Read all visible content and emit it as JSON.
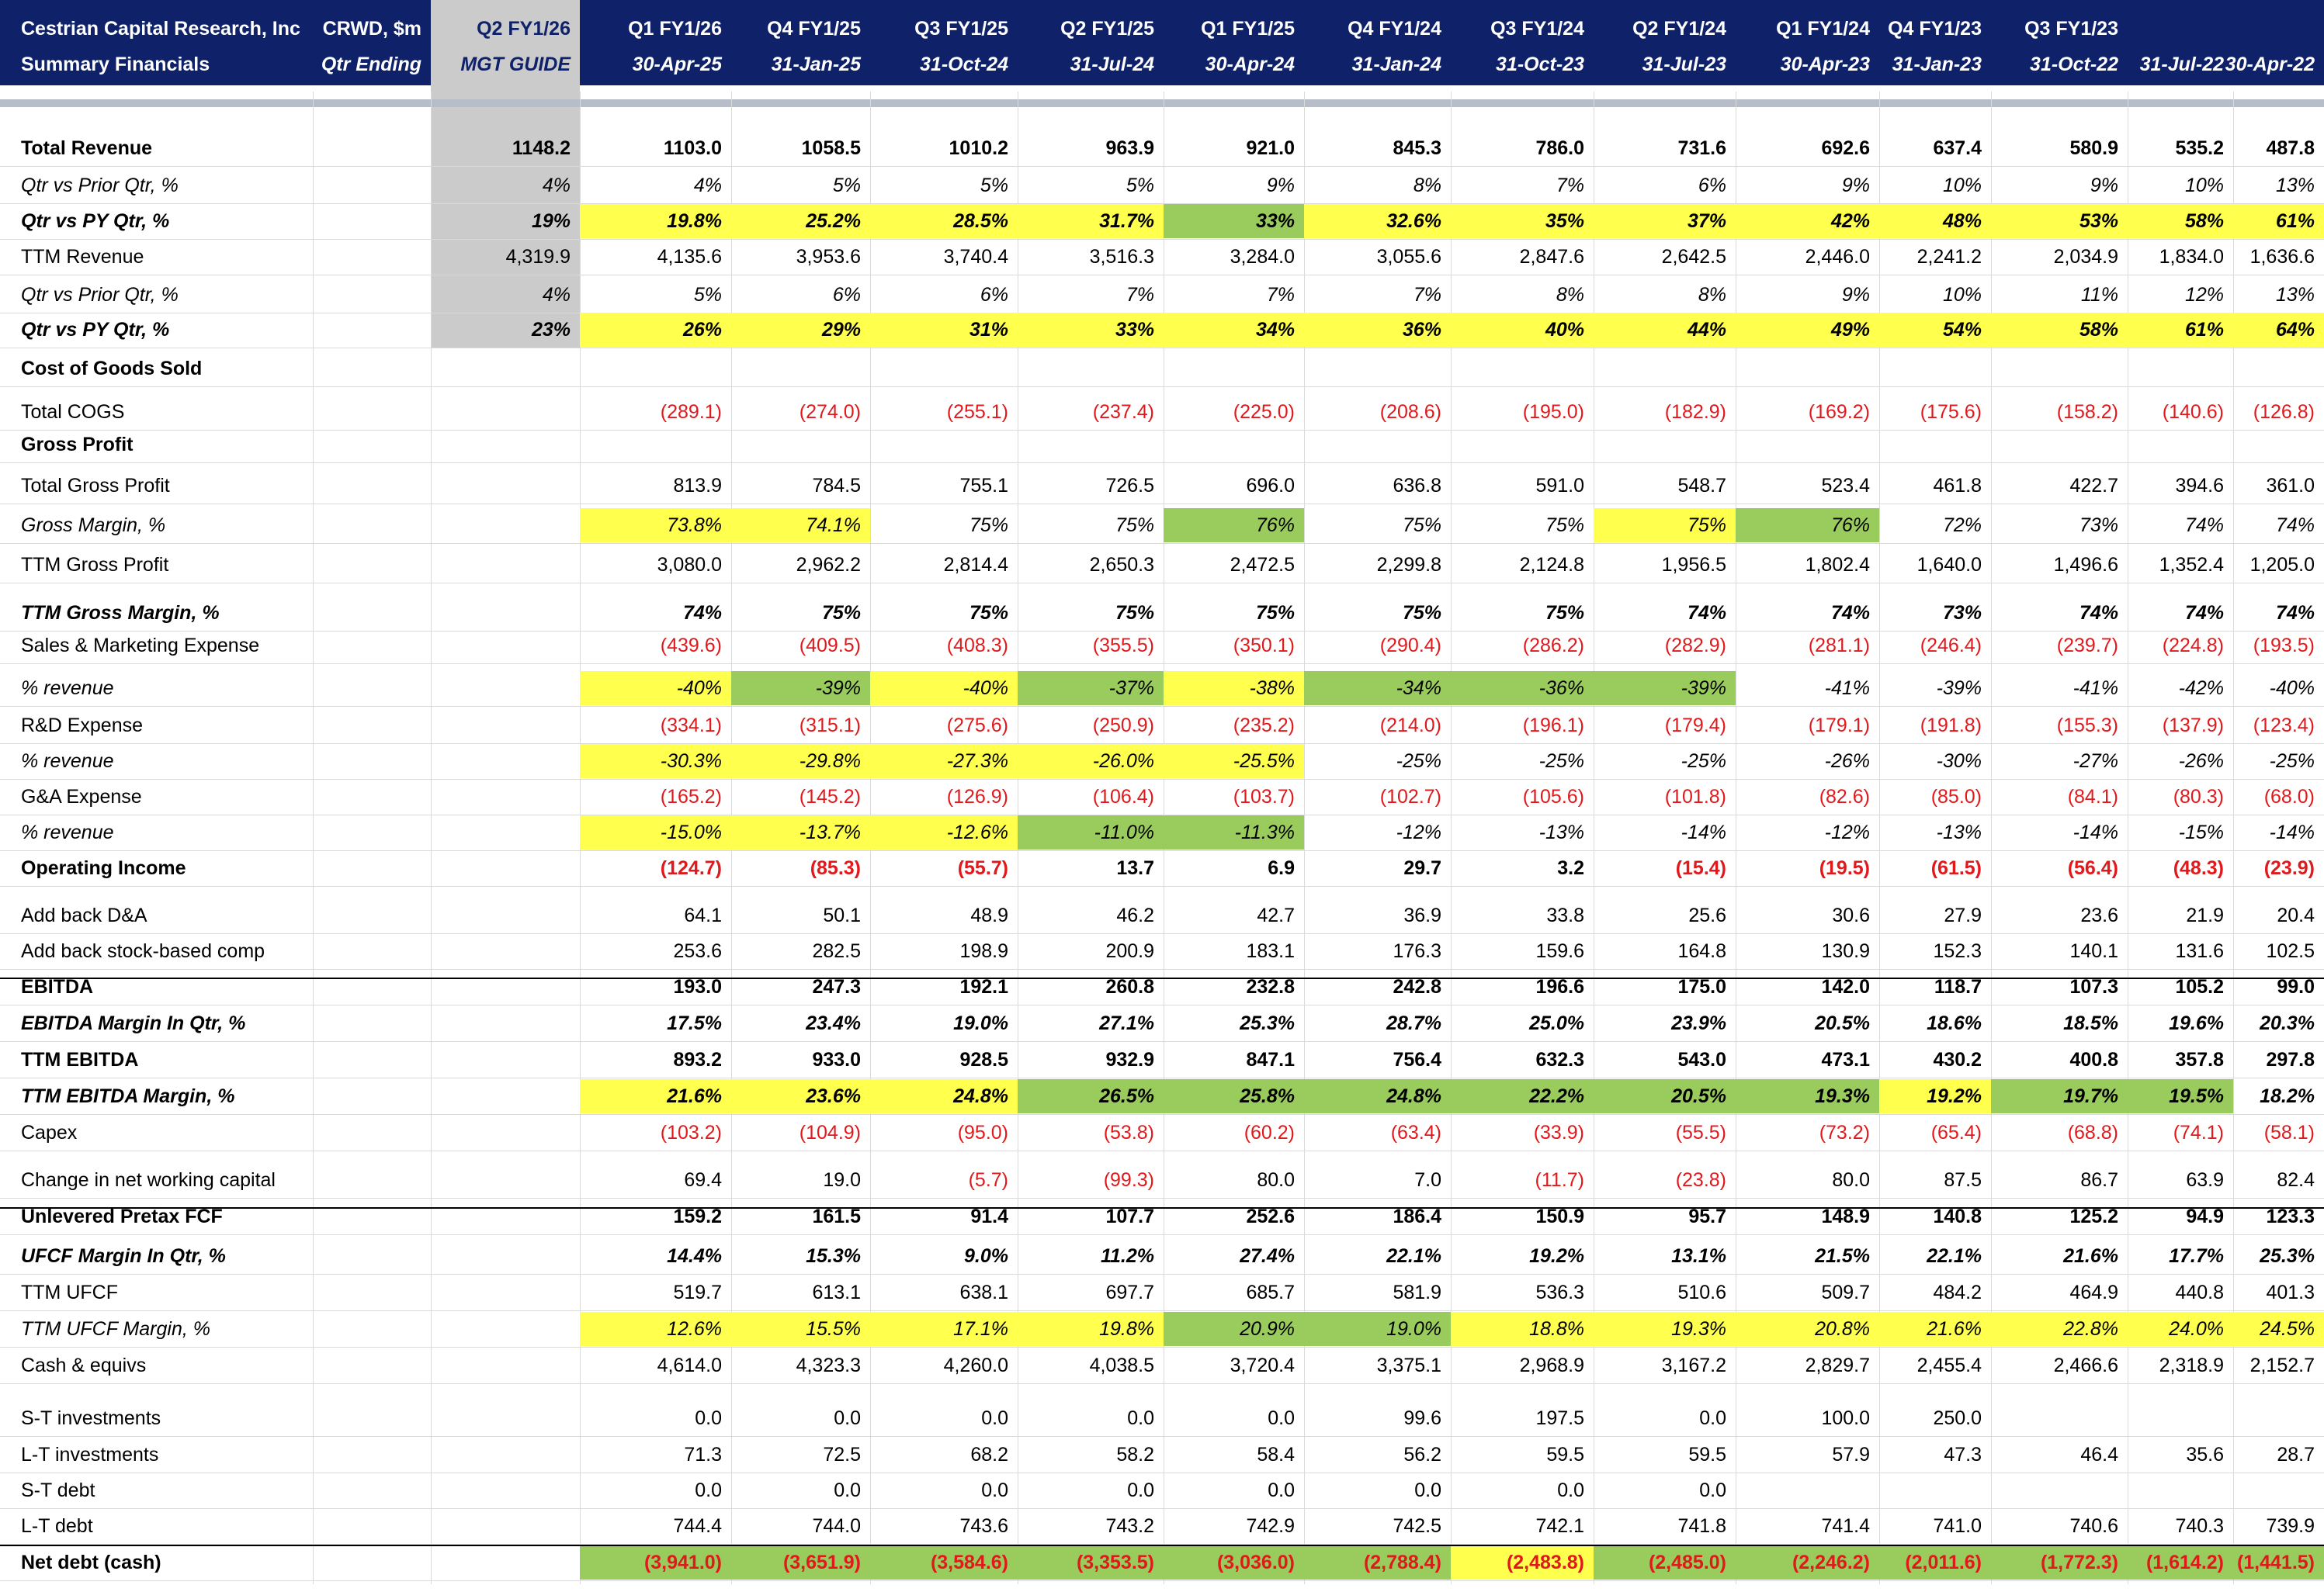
{
  "header": {
    "line1": [
      "Cestrian Capital Research, Inc",
      "CRWD, $m",
      "Q2 FY1/26",
      "Q1 FY1/26",
      "Q4 FY1/25",
      "Q3 FY1/25",
      "Q2 FY1/25",
      "Q1 FY1/25",
      "Q4 FY1/24",
      "Q3 FY1/24",
      "Q2 FY1/24",
      "Q1 FY1/24",
      "Q4 FY1/23",
      "Q3 FY1/23",
      "",
      ""
    ],
    "line2": [
      "Summary Financials",
      "Qtr Ending",
      "MGT GUIDE",
      "30-Apr-25",
      "31-Jan-25",
      "31-Oct-24",
      "31-Jul-24",
      "30-Apr-24",
      "31-Jan-24",
      "31-Oct-23",
      "31-Jul-23",
      "30-Apr-23",
      "31-Jan-23",
      "31-Oct-22",
      "31-Jul-22",
      "30-Apr-22"
    ]
  },
  "colors": {
    "header_bg": "#0f2169",
    "guide_bg": "#cbcbcb",
    "highlight_yellow": "#ffff4d",
    "highlight_green": "#99cc5c",
    "negative_text": "#e0191c"
  },
  "rows": [
    {
      "label": "Total Revenue",
      "style": "b",
      "values": [
        "1148.2",
        "1103.0",
        "1058.5",
        "1010.2",
        "963.9",
        "921.0",
        "845.3",
        "786.0",
        "731.6",
        "692.6",
        "637.4",
        "580.9",
        "535.2",
        "487.8"
      ]
    },
    {
      "label": "Qtr vs Prior Qtr, %",
      "style": "i",
      "values": [
        "4%",
        "4%",
        "5%",
        "5%",
        "5%",
        "9%",
        "8%",
        "7%",
        "6%",
        "9%",
        "10%",
        "9%",
        "10%",
        "13%"
      ]
    },
    {
      "label": "Qtr vs PY Qtr, %",
      "style": "bi",
      "values": [
        "19%",
        "19.8%",
        "25.2%",
        "28.5%",
        "31.7%",
        "33%",
        "32.6%",
        "35%",
        "37%",
        "42%",
        "48%",
        "53%",
        "58%",
        "61%"
      ]
    },
    {
      "label": "TTM Revenue",
      "style": "",
      "values": [
        "4,319.9",
        "4,135.6",
        "3,953.6",
        "3,740.4",
        "3,516.3",
        "3,284.0",
        "3,055.6",
        "2,847.6",
        "2,642.5",
        "2,446.0",
        "2,241.2",
        "2,034.9",
        "1,834.0",
        "1,636.6"
      ]
    },
    {
      "label": "Qtr vs Prior Qtr, %",
      "style": "i",
      "values": [
        "4%",
        "5%",
        "6%",
        "6%",
        "7%",
        "7%",
        "7%",
        "8%",
        "8%",
        "9%",
        "10%",
        "11%",
        "12%",
        "13%"
      ]
    },
    {
      "label": "Qtr vs PY Qtr, %",
      "style": "bi",
      "values": [
        "23%",
        "26%",
        "29%",
        "31%",
        "33%",
        "34%",
        "36%",
        "40%",
        "44%",
        "49%",
        "54%",
        "58%",
        "61%",
        "64%"
      ]
    },
    {
      "label": "Cost of Goods Sold",
      "style": "b",
      "values": []
    },
    {
      "label": "Total COGS",
      "style": "",
      "values": [
        "",
        "(289.1)",
        "(274.0)",
        "(255.1)",
        "(237.4)",
        "(225.0)",
        "(208.6)",
        "(195.0)",
        "(182.9)",
        "(169.2)",
        "(175.6)",
        "(158.2)",
        "(140.6)",
        "(126.8)"
      ]
    },
    {
      "label": "Gross Profit",
      "style": "b",
      "values": []
    },
    {
      "label": "Total Gross Profit",
      "style": "",
      "values": [
        "",
        "813.9",
        "784.5",
        "755.1",
        "726.5",
        "696.0",
        "636.8",
        "591.0",
        "548.7",
        "523.4",
        "461.8",
        "422.7",
        "394.6",
        "361.0"
      ]
    },
    {
      "label": "Gross Margin, %",
      "style": "i",
      "values": [
        "",
        "73.8%",
        "74.1%",
        "75%",
        "75%",
        "76%",
        "75%",
        "75%",
        "75%",
        "76%",
        "72%",
        "73%",
        "74%",
        "74%"
      ]
    },
    {
      "label": "TTM Gross Profit",
      "style": "",
      "values": [
        "",
        "3,080.0",
        "2,962.2",
        "2,814.4",
        "2,650.3",
        "2,472.5",
        "2,299.8",
        "2,124.8",
        "1,956.5",
        "1,802.4",
        "1,640.0",
        "1,496.6",
        "1,352.4",
        "1,205.0"
      ]
    },
    {
      "label": "TTM Gross Margin, %",
      "style": "bi",
      "values": [
        "",
        "74%",
        "75%",
        "75%",
        "75%",
        "75%",
        "75%",
        "75%",
        "74%",
        "74%",
        "73%",
        "74%",
        "74%",
        "74%"
      ]
    },
    {
      "label": "Sales & Marketing Expense",
      "style": "",
      "values": [
        "",
        "(439.6)",
        "(409.5)",
        "(408.3)",
        "(355.5)",
        "(350.1)",
        "(290.4)",
        "(286.2)",
        "(282.9)",
        "(281.1)",
        "(246.4)",
        "(239.7)",
        "(224.8)",
        "(193.5)"
      ]
    },
    {
      "label": "% revenue",
      "style": "i",
      "values": [
        "",
        "-40%",
        "-39%",
        "-40%",
        "-37%",
        "-38%",
        "-34%",
        "-36%",
        "-39%",
        "-41%",
        "-39%",
        "-41%",
        "-42%",
        "-40%"
      ]
    },
    {
      "label": "R&D Expense",
      "style": "",
      "values": [
        "",
        "(334.1)",
        "(315.1)",
        "(275.6)",
        "(250.9)",
        "(235.2)",
        "(214.0)",
        "(196.1)",
        "(179.4)",
        "(179.1)",
        "(191.8)",
        "(155.3)",
        "(137.9)",
        "(123.4)"
      ]
    },
    {
      "label": "% revenue",
      "style": "i",
      "values": [
        "",
        "-30.3%",
        "-29.8%",
        "-27.3%",
        "-26.0%",
        "-25.5%",
        "-25%",
        "-25%",
        "-25%",
        "-26%",
        "-30%",
        "-27%",
        "-26%",
        "-25%"
      ]
    },
    {
      "label": "G&A Expense",
      "style": "",
      "values": [
        "",
        "(165.2)",
        "(145.2)",
        "(126.9)",
        "(106.4)",
        "(103.7)",
        "(102.7)",
        "(105.6)",
        "(101.8)",
        "(82.6)",
        "(85.0)",
        "(84.1)",
        "(80.3)",
        "(68.0)"
      ]
    },
    {
      "label": "% revenue",
      "style": "i",
      "values": [
        "",
        "-15.0%",
        "-13.7%",
        "-12.6%",
        "-11.0%",
        "-11.3%",
        "-12%",
        "-13%",
        "-14%",
        "-12%",
        "-13%",
        "-14%",
        "-15%",
        "-14%"
      ]
    },
    {
      "label": "Operating Income",
      "style": "b",
      "values": [
        "",
        "(124.7)",
        "(85.3)",
        "(55.7)",
        "13.7",
        "6.9",
        "29.7",
        "3.2",
        "(15.4)",
        "(19.5)",
        "(61.5)",
        "(56.4)",
        "(48.3)",
        "(23.9)"
      ]
    },
    {
      "label": "Add back D&A",
      "style": "",
      "values": [
        "",
        "64.1",
        "50.1",
        "48.9",
        "46.2",
        "42.7",
        "36.9",
        "33.8",
        "25.6",
        "30.6",
        "27.9",
        "23.6",
        "21.9",
        "20.4"
      ]
    },
    {
      "label": "Add back stock-based comp",
      "style": "",
      "values": [
        "",
        "253.6",
        "282.5",
        "198.9",
        "200.9",
        "183.1",
        "176.3",
        "159.6",
        "164.8",
        "130.9",
        "152.3",
        "140.1",
        "131.6",
        "102.5"
      ]
    },
    {
      "label": "EBITDA",
      "style": "b",
      "values": [
        "",
        "193.0",
        "247.3",
        "192.1",
        "260.8",
        "232.8",
        "242.8",
        "196.6",
        "175.0",
        "142.0",
        "118.7",
        "107.3",
        "105.2",
        "99.0"
      ]
    },
    {
      "label": "EBITDA Margin In Qtr, %",
      "style": "bi",
      "values": [
        "",
        "17.5%",
        "23.4%",
        "19.0%",
        "27.1%",
        "25.3%",
        "28.7%",
        "25.0%",
        "23.9%",
        "20.5%",
        "18.6%",
        "18.5%",
        "19.6%",
        "20.3%"
      ]
    },
    {
      "label": "TTM EBITDA",
      "style": "b",
      "values": [
        "",
        "893.2",
        "933.0",
        "928.5",
        "932.9",
        "847.1",
        "756.4",
        "632.3",
        "543.0",
        "473.1",
        "430.2",
        "400.8",
        "357.8",
        "297.8"
      ]
    },
    {
      "label": "TTM EBITDA Margin, %",
      "style": "bi",
      "values": [
        "",
        "21.6%",
        "23.6%",
        "24.8%",
        "26.5%",
        "25.8%",
        "24.8%",
        "22.2%",
        "20.5%",
        "19.3%",
        "19.2%",
        "19.7%",
        "19.5%",
        "18.2%"
      ]
    },
    {
      "label": "Capex",
      "style": "",
      "values": [
        "",
        "(103.2)",
        "(104.9)",
        "(95.0)",
        "(53.8)",
        "(60.2)",
        "(63.4)",
        "(33.9)",
        "(55.5)",
        "(73.2)",
        "(65.4)",
        "(68.8)",
        "(74.1)",
        "(58.1)"
      ]
    },
    {
      "label": "Change in net working capital",
      "style": "",
      "values": [
        "",
        "69.4",
        "19.0",
        "(5.7)",
        "(99.3)",
        "80.0",
        "7.0",
        "(11.7)",
        "(23.8)",
        "80.0",
        "87.5",
        "86.7",
        "63.9",
        "82.4"
      ]
    },
    {
      "label": "Unlevered Pretax FCF",
      "style": "b",
      "values": [
        "",
        "159.2",
        "161.5",
        "91.4",
        "107.7",
        "252.6",
        "186.4",
        "150.9",
        "95.7",
        "148.9",
        "140.8",
        "125.2",
        "94.9",
        "123.3"
      ]
    },
    {
      "label": "UFCF Margin In Qtr, %",
      "style": "bi",
      "values": [
        "",
        "14.4%",
        "15.3%",
        "9.0%",
        "11.2%",
        "27.4%",
        "22.1%",
        "19.2%",
        "13.1%",
        "21.5%",
        "22.1%",
        "21.6%",
        "17.7%",
        "25.3%"
      ]
    },
    {
      "label": "TTM UFCF",
      "style": "",
      "values": [
        "",
        "519.7",
        "613.1",
        "638.1",
        "697.7",
        "685.7",
        "581.9",
        "536.3",
        "510.6",
        "509.7",
        "484.2",
        "464.9",
        "440.8",
        "401.3"
      ]
    },
    {
      "label": "TTM UFCF Margin, %",
      "style": "i",
      "values": [
        "",
        "12.6%",
        "15.5%",
        "17.1%",
        "19.8%",
        "20.9%",
        "19.0%",
        "18.8%",
        "19.3%",
        "20.8%",
        "21.6%",
        "22.8%",
        "24.0%",
        "24.5%"
      ]
    },
    {
      "label": "Cash & equivs",
      "style": "",
      "values": [
        "",
        "4,614.0",
        "4,323.3",
        "4,260.0",
        "4,038.5",
        "3,720.4",
        "3,375.1",
        "2,968.9",
        "3,167.2",
        "2,829.7",
        "2,455.4",
        "2,466.6",
        "2,318.9",
        "2,152.7"
      ]
    },
    {
      "label": "S-T investments",
      "style": "",
      "values": [
        "",
        "0.0",
        "0.0",
        "0.0",
        "0.0",
        "0.0",
        "99.6",
        "197.5",
        "0.0",
        "100.0",
        "250.0",
        "",
        "",
        ""
      ]
    },
    {
      "label": "L-T investments",
      "style": "",
      "values": [
        "",
        "71.3",
        "72.5",
        "68.2",
        "58.2",
        "58.4",
        "56.2",
        "59.5",
        "59.5",
        "57.9",
        "47.3",
        "46.4",
        "35.6",
        "28.7"
      ]
    },
    {
      "label": "S-T debt",
      "style": "",
      "values": [
        "",
        "0.0",
        "0.0",
        "0.0",
        "0.0",
        "0.0",
        "0.0",
        "0.0",
        "0.0",
        "",
        "",
        "",
        "",
        ""
      ]
    },
    {
      "label": "L-T debt",
      "style": "",
      "values": [
        "",
        "744.4",
        "744.0",
        "743.6",
        "743.2",
        "742.9",
        "742.5",
        "742.1",
        "741.8",
        "741.4",
        "741.0",
        "740.6",
        "740.3",
        "739.9"
      ]
    },
    {
      "label": "Net debt (cash)",
      "style": "b",
      "values": [
        "",
        "(3,941.0)",
        "(3,651.9)",
        "(3,584.6)",
        "(3,353.5)",
        "(3,036.0)",
        "(2,788.4)",
        "(2,483.8)",
        "(2,485.0)",
        "(2,246.2)",
        "(2,011.6)",
        "(1,772.3)",
        "(1,614.2)",
        "(1,441.5)"
      ]
    }
  ]
}
